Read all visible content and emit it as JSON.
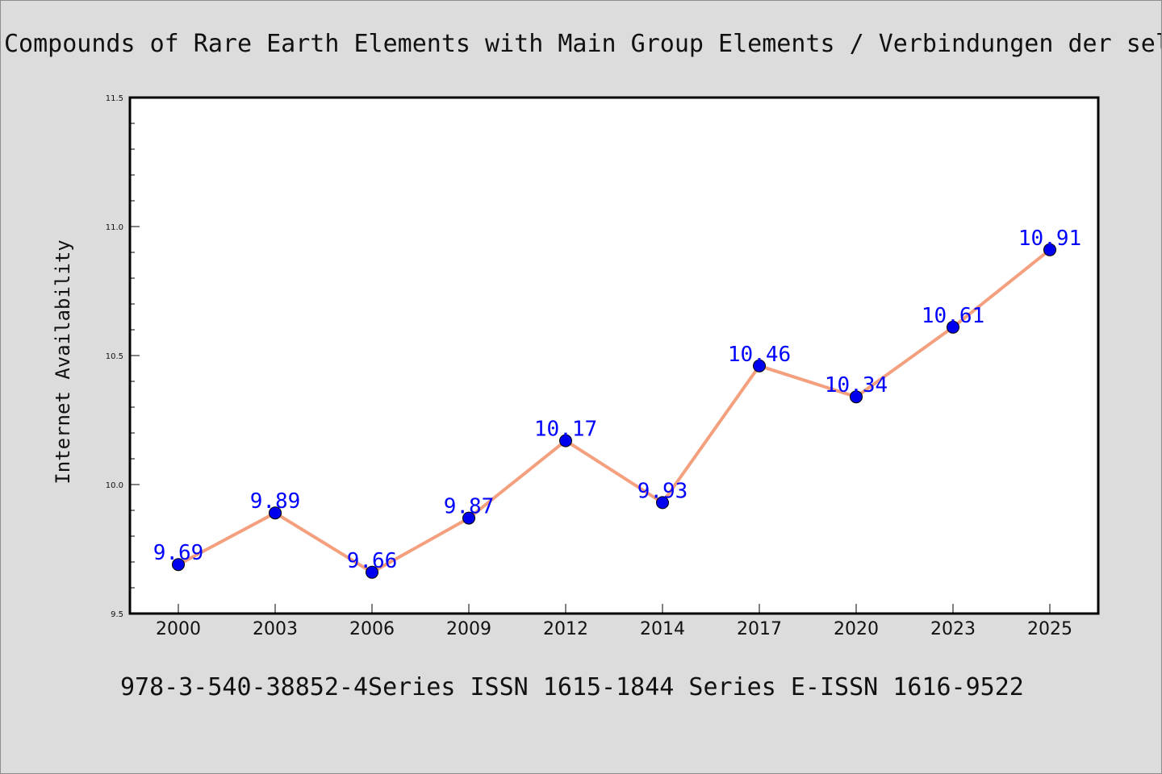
{
  "chart_data": {
    "type": "line",
    "title": "Compounds of Rare Earth Elements with Main Group Elements / Verbindungen der sel",
    "xlabel": "",
    "ylabel": "Internet Availability",
    "categories": [
      "2000",
      "2003",
      "2006",
      "2009",
      "2012",
      "2014",
      "2017",
      "2020",
      "2023",
      "2025"
    ],
    "series": [
      {
        "values": [
          9.69,
          9.89,
          9.66,
          9.87,
          10.17,
          9.93,
          10.46,
          10.34,
          10.61,
          10.91
        ],
        "data_labels": [
          "9.69",
          "9.89",
          "9.66",
          "9.87",
          "10.17",
          "9.93",
          "10.46",
          "10.34",
          "10.61",
          "10.91"
        ],
        "line_color": "#f4a07e",
        "marker_color": "#0000ee",
        "label_color": "#0000ff"
      }
    ],
    "ylim": [
      9.5,
      11.5
    ],
    "y_ticks": [
      "9.5",
      "10.0",
      "10.5",
      "11.0",
      "11.5"
    ],
    "grid": false,
    "legend": "none",
    "footer": "978-3-540-38852-4Series ISSN 1615-1844 Series E-ISSN 1616-9522"
  },
  "colors": {
    "background": "#dcdcdc",
    "plot_area": "#ffffff",
    "axis": "#000000",
    "text": "#111111"
  }
}
